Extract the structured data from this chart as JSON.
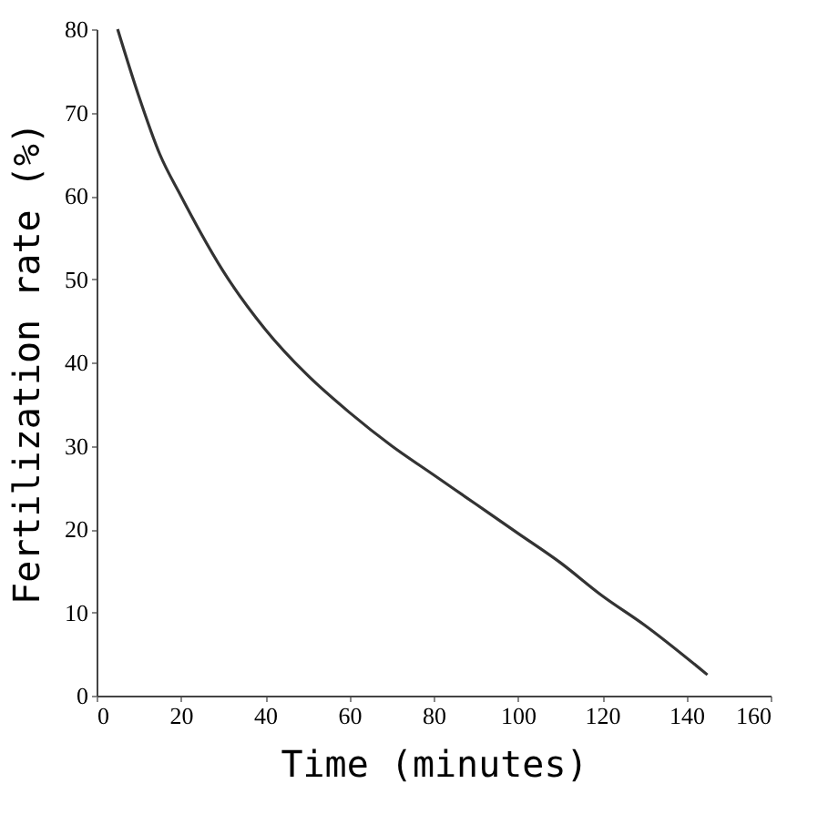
{
  "chart_data": {
    "type": "line",
    "xlabel": "Time (minutes)",
    "ylabel": "Fertilization rate (%)",
    "x": [
      5,
      10,
      15,
      20,
      30,
      40,
      50,
      60,
      70,
      80,
      90,
      100,
      110,
      120,
      130,
      145
    ],
    "series": [
      {
        "color": "#333333",
        "values": [
          80,
          72,
          65,
          60,
          51,
          44,
          38.5,
          34,
          30,
          26.5,
          23,
          19.5,
          16,
          12,
          8.5,
          2.5
        ]
      }
    ],
    "xlim": [
      0,
      160
    ],
    "ylim": [
      0,
      80
    ],
    "xticks": [
      0,
      20,
      40,
      60,
      80,
      100,
      120,
      140,
      160
    ],
    "yticks": [
      0,
      10,
      20,
      30,
      40,
      50,
      60,
      70,
      80
    ],
    "grid": false,
    "marker": "none",
    "line_style": "solid"
  }
}
